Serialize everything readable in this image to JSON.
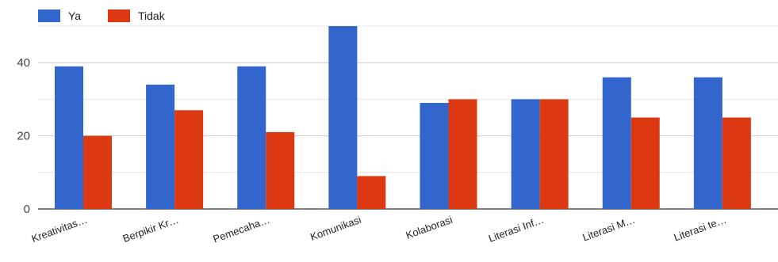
{
  "chart_data": {
    "type": "bar",
    "categories": [
      "Kreativitas…",
      "Berpikir Kr…",
      "Pemecaha…",
      "Komunikasi",
      "Kolaborasi",
      "Literasi Inf…",
      "Literasi M…",
      "Literasi te…"
    ],
    "series": [
      {
        "name": "Ya",
        "color": "#3366cc",
        "values": [
          39,
          34,
          39,
          50,
          29,
          30,
          36,
          36
        ]
      },
      {
        "name": "Tidak",
        "color": "#dc3912",
        "values": [
          20,
          27,
          21,
          9,
          30,
          30,
          25,
          25
        ]
      }
    ],
    "yticks": [
      0,
      20,
      40
    ],
    "ylim": [
      0,
      50
    ],
    "grid": true,
    "legend": "top-left"
  }
}
